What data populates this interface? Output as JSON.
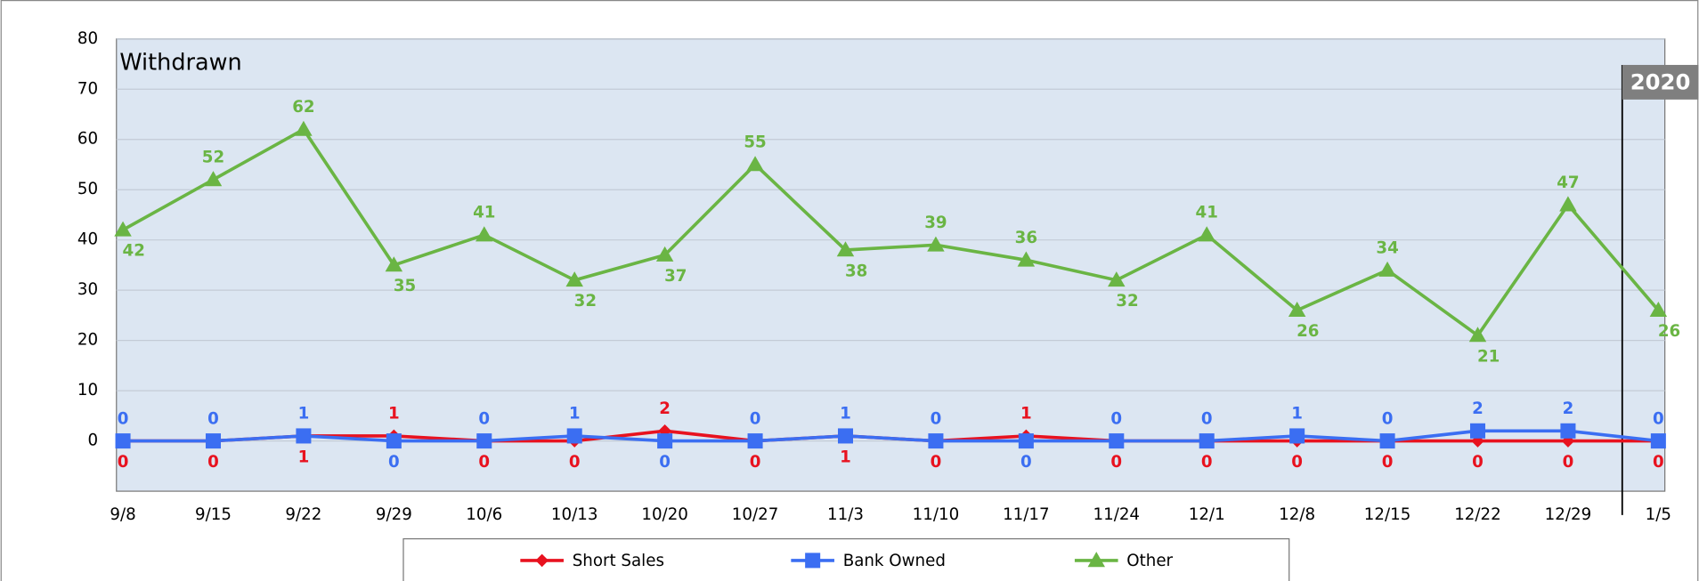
{
  "chart_data": {
    "type": "line",
    "title": "Withdrawn",
    "categories": [
      "9/8",
      "9/15",
      "9/22",
      "9/29",
      "10/6",
      "10/13",
      "10/20",
      "10/27",
      "11/3",
      "11/10",
      "11/17",
      "11/24",
      "12/1",
      "12/8",
      "12/15",
      "12/22",
      "12/29",
      "1/5"
    ],
    "series": [
      {
        "name": "Short Sales",
        "color": "#e8121f",
        "marker": "diamond",
        "values": [
          0,
          0,
          1,
          1,
          0,
          0,
          2,
          0,
          1,
          0,
          1,
          0,
          0,
          0,
          0,
          0,
          0,
          0
        ]
      },
      {
        "name": "Bank Owned",
        "color": "#3b6ef2",
        "marker": "square",
        "values": [
          0,
          0,
          1,
          0,
          0,
          1,
          0,
          0,
          1,
          0,
          0,
          0,
          0,
          1,
          0,
          2,
          2,
          0
        ]
      },
      {
        "name": "Other",
        "color": "#6ab544",
        "marker": "triangle",
        "values": [
          42,
          52,
          62,
          35,
          41,
          32,
          37,
          55,
          38,
          39,
          36,
          32,
          41,
          26,
          34,
          21,
          47,
          26
        ]
      }
    ],
    "ylim": [
      -10,
      80
    ],
    "yticks": [
      0,
      10,
      20,
      30,
      40,
      50,
      60,
      70,
      80
    ],
    "grid": true,
    "annotation": "2020"
  }
}
